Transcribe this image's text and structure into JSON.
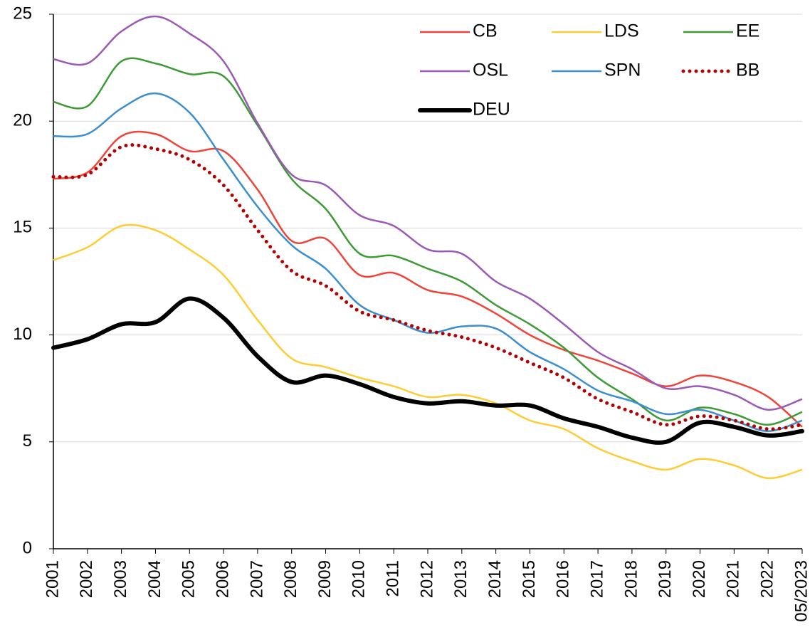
{
  "chart_data": {
    "type": "line",
    "categories": [
      "2001",
      "2002",
      "2003",
      "2004",
      "2005",
      "2006",
      "2007",
      "2008",
      "2009",
      "2010",
      "2011",
      "2012",
      "2013",
      "2014",
      "2015",
      "2016",
      "2017",
      "2018",
      "2019",
      "2020",
      "2021",
      "2022",
      "05/2023"
    ],
    "series": [
      {
        "name": "CB",
        "color": "#f0443a",
        "values": [
          17.3,
          17.6,
          19.3,
          19.4,
          18.6,
          18.6,
          16.8,
          14.4,
          14.5,
          12.8,
          12.9,
          12.1,
          11.8,
          11.0,
          10.0,
          9.3,
          8.8,
          8.2,
          7.6,
          8.1,
          7.8,
          7.1,
          5.7
        ]
      },
      {
        "name": "LDS",
        "color": "#ffcc33",
        "values": [
          13.5,
          14.1,
          15.1,
          14.9,
          14.0,
          12.8,
          10.7,
          8.9,
          8.5,
          8.0,
          7.6,
          7.1,
          7.2,
          6.8,
          6.0,
          5.6,
          4.7,
          4.1,
          3.7,
          4.2,
          3.9,
          3.3,
          3.7
        ]
      },
      {
        "name": "EE",
        "color": "#3d9b35",
        "values": [
          20.9,
          20.7,
          22.8,
          22.7,
          22.2,
          22.1,
          19.8,
          17.3,
          15.9,
          13.8,
          13.7,
          13.1,
          12.5,
          11.4,
          10.5,
          9.4,
          8.0,
          7.0,
          6.0,
          6.6,
          6.3,
          5.8,
          6.4
        ]
      },
      {
        "name": "OSL",
        "color": "#9b59b6",
        "values": [
          22.9,
          22.7,
          24.2,
          24.9,
          24.1,
          22.8,
          19.9,
          17.5,
          17.0,
          15.6,
          15.1,
          14.0,
          13.8,
          12.5,
          11.7,
          10.5,
          9.2,
          8.4,
          7.5,
          7.6,
          7.2,
          6.5,
          7.0
        ]
      },
      {
        "name": "SPN",
        "color": "#3b8fd0",
        "values": [
          19.3,
          19.4,
          20.6,
          21.3,
          20.4,
          18.2,
          16.0,
          14.2,
          13.1,
          11.4,
          10.7,
          10.1,
          10.4,
          10.3,
          9.2,
          8.4,
          7.4,
          6.9,
          6.3,
          6.5,
          6.0,
          5.5,
          6.0
        ]
      },
      {
        "name": "BB",
        "color": "#b30000",
        "line_style": "dotted",
        "values": [
          17.4,
          17.5,
          18.8,
          18.7,
          18.2,
          17.0,
          14.9,
          13.0,
          12.3,
          11.1,
          10.7,
          10.2,
          9.9,
          9.4,
          8.7,
          8.0,
          7.0,
          6.4,
          5.8,
          6.2,
          6.0,
          5.6,
          5.8
        ]
      },
      {
        "name": "DEU",
        "color": "#000000",
        "line_style": "bold",
        "values": [
          9.4,
          9.8,
          10.5,
          10.6,
          11.7,
          10.8,
          9.0,
          7.8,
          8.1,
          7.7,
          7.1,
          6.8,
          6.9,
          6.7,
          6.7,
          6.1,
          5.7,
          5.2,
          5.0,
          5.9,
          5.7,
          5.3,
          5.5
        ]
      }
    ],
    "ylim": [
      0,
      25
    ],
    "yticks": [
      0,
      5,
      10,
      15,
      20,
      25
    ],
    "grid": true,
    "legend": "top-right"
  }
}
